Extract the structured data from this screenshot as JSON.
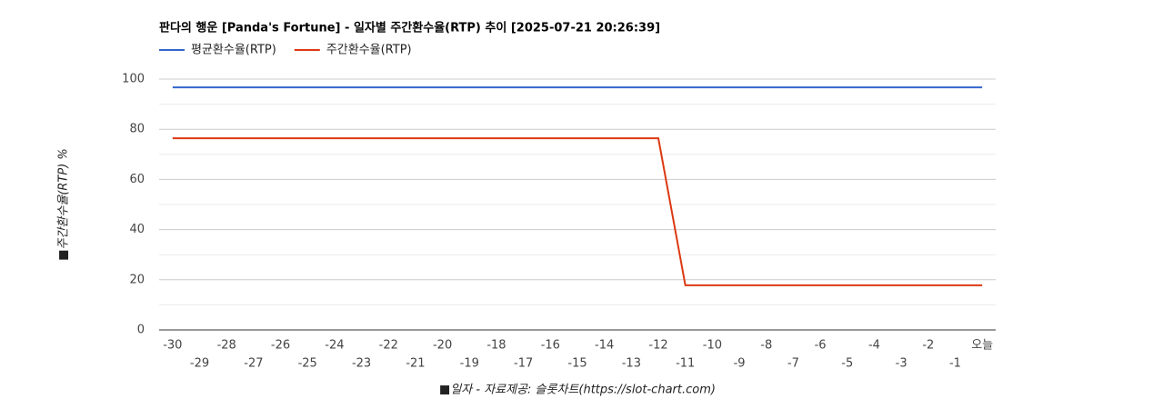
{
  "chart_data": {
    "type": "line",
    "title": "판다의 행운 [Panda's Fortune] - 일자별 주간환수율(RTP) 추이 [2025-07-21 20:26:39]",
    "y_label": "■주간환수율(RTP) %",
    "x_label": "■일자 - 자료제공: 슬롯차트(https://slot-chart.com)",
    "categories": [
      "-30",
      "-29",
      "-28",
      "-27",
      "-26",
      "-25",
      "-24",
      "-23",
      "-22",
      "-21",
      "-20",
      "-19",
      "-18",
      "-17",
      "-16",
      "-15",
      "-14",
      "-13",
      "-12",
      "-11",
      "-10",
      "-9",
      "-8",
      "-7",
      "-6",
      "-5",
      "-4",
      "-3",
      "-2",
      "-1",
      "오늘"
    ],
    "series": [
      {
        "name": "평균환수율(RTP)",
        "color": "#3366cc",
        "values": [
          96.7,
          96.7,
          96.7,
          96.7,
          96.7,
          96.7,
          96.7,
          96.7,
          96.7,
          96.7,
          96.7,
          96.7,
          96.7,
          96.7,
          96.7,
          96.7,
          96.7,
          96.7,
          96.7,
          96.7,
          96.7,
          96.7,
          96.7,
          96.7,
          96.7,
          96.7,
          96.7,
          96.7,
          96.7,
          96.7,
          96.7
        ]
      },
      {
        "name": "주간환수율(RTP)",
        "color": "#dc3912",
        "values": [
          76.4,
          76.4,
          76.4,
          76.4,
          76.4,
          76.4,
          76.4,
          76.4,
          76.4,
          76.4,
          76.4,
          76.4,
          76.4,
          76.4,
          76.4,
          76.4,
          76.4,
          76.4,
          76.4,
          17.8,
          17.8,
          17.8,
          17.8,
          17.8,
          17.8,
          17.8,
          17.8,
          17.8,
          17.8,
          17.8,
          17.8
        ]
      }
    ],
    "ylim": [
      0,
      100
    ],
    "yticks": [
      0,
      20,
      40,
      60,
      80,
      100
    ],
    "grid": true,
    "legend": "top-left"
  }
}
